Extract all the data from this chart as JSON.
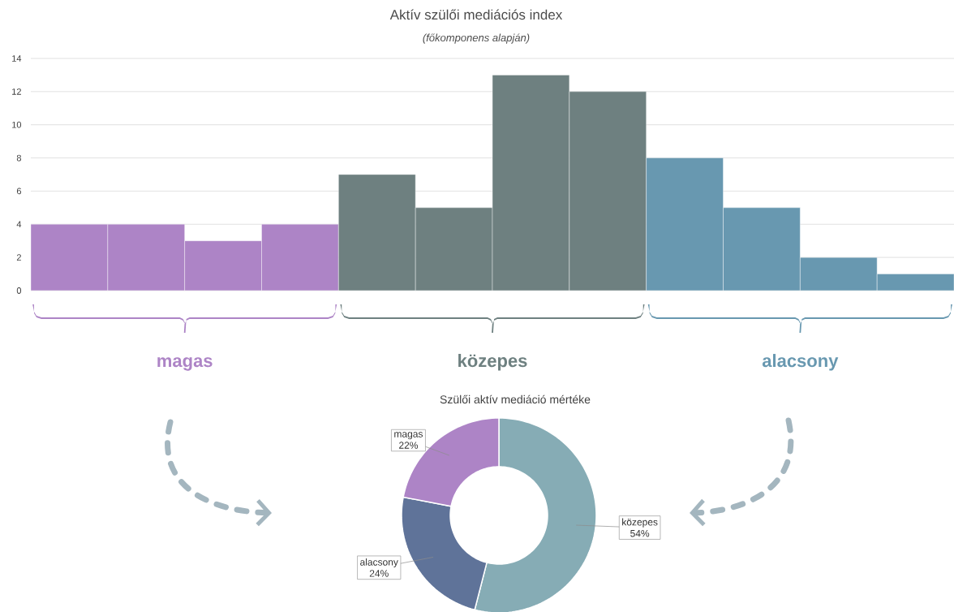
{
  "chart_data": [
    {
      "type": "bar",
      "title": "Aktív szülői mediációs index",
      "subtitle": "(főkomponens alapján)",
      "categories": [
        null,
        null,
        null,
        null,
        null,
        null,
        null,
        null,
        null,
        null,
        null,
        null
      ],
      "values": [
        4,
        4,
        3,
        4,
        7,
        5,
        13,
        12,
        8,
        5,
        2,
        1
      ],
      "colors": [
        "#ad84c6",
        "#ad84c6",
        "#ad84c6",
        "#ad84c6",
        "#6e8080",
        "#6e8080",
        "#6e8080",
        "#6e8080",
        "#6898b0",
        "#6898b0",
        "#6898b0",
        "#6898b0"
      ],
      "ylim": [
        0,
        14
      ],
      "yticks": [
        0,
        2,
        4,
        6,
        8,
        10,
        12,
        14
      ],
      "grid": "y",
      "tick_labels": "y",
      "annotations": [
        "magas",
        "közepes",
        "alacsony"
      ]
    },
    {
      "type": "donut",
      "title": "Szülői aktív mediáció mértéke",
      "categories": [
        "közepes",
        "alacsony",
        "magas"
      ],
      "values": [
        54,
        24,
        22
      ],
      "colors": [
        "#86acb5",
        "#5f7399",
        "#ad84c6"
      ],
      "value_labels": [
        "54%",
        "24%",
        "22%"
      ]
    }
  ]
}
